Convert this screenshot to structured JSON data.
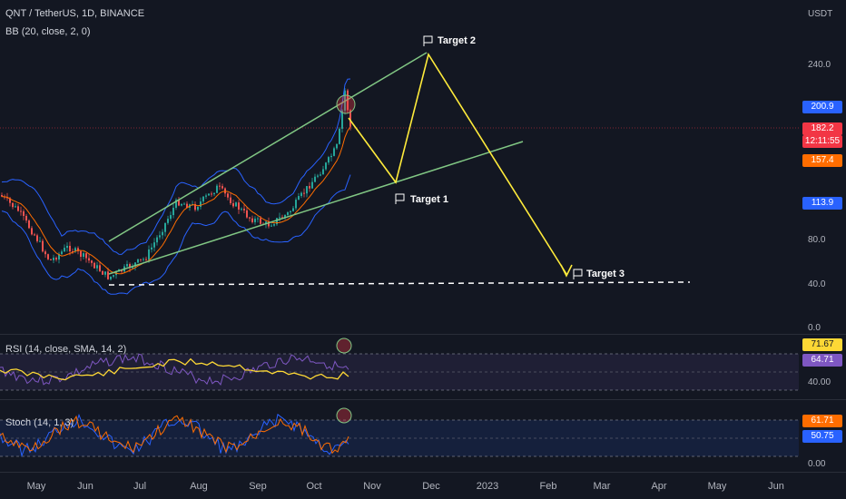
{
  "header": {
    "symbol_title": "QNT / TetherUS, 1D, BINANCE",
    "bb_legend": "BB (20, close, 2, 0)"
  },
  "price_scale": {
    "currency": "USDT",
    "ticks": [
      "240.0",
      "80.0",
      "40.0",
      "0.0"
    ],
    "tags": {
      "upper": "200.9",
      "last": "182.2",
      "countdown": "12:11:55",
      "basis": "157.4",
      "lower": "113.9"
    }
  },
  "rsi_pane": {
    "legend": "RSI (14, close, SMA, 14, 2)",
    "value": "71.67",
    "sma": "64.71",
    "tick": "40.00"
  },
  "stoch_pane": {
    "legend": "Stoch (14, 1, 3)",
    "k": "61.71",
    "d": "50.75",
    "tick": "0.00"
  },
  "time_axis": [
    "May",
    "Jun",
    "Jul",
    "Aug",
    "Sep",
    "Oct",
    "Nov",
    "Dec",
    "2023",
    "Feb",
    "Mar",
    "Apr",
    "May",
    "Jun"
  ],
  "targets": {
    "t1": "Target 1",
    "t2": "Target 2",
    "t3": "Target 3"
  },
  "colors": {
    "background": "#131722",
    "bull": "#26a69a",
    "bear": "#ef5350",
    "bb_band": "#2962ff",
    "bb_basis": "#ff6d00",
    "channel": "#81c784",
    "projection": "#ffeb3b",
    "rsi": "#7e57c2",
    "rsi_sma": "#fdd835",
    "stoch_k": "#2962ff",
    "stoch_d": "#ff6d00",
    "tag_upper": "#2962ff",
    "tag_last": "#f23645",
    "tag_basis": "#ff6d00",
    "tag_rsi": "#fdd835",
    "tag_rsi_sma": "#7e57c2",
    "tag_stoch_k": "#ff6d00",
    "tag_stoch_d": "#2962ff"
  }
}
